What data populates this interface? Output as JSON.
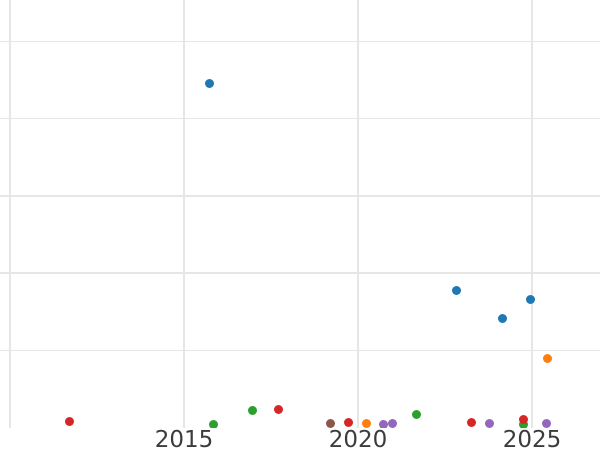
{
  "page": {
    "background": "#ffffff"
  },
  "chart_data": {
    "type": "scatter",
    "title": "",
    "xlabel": "",
    "ylabel": "",
    "legend": false,
    "grid": true,
    "x_tick_labels": [
      "2015",
      "2020",
      "2025"
    ],
    "x_ticks": [
      2015,
      2020,
      2025
    ],
    "x_gridline_years": [
      2010,
      2015,
      2020,
      2025
    ],
    "y_gridline_values": [
      1,
      2,
      3,
      4,
      5
    ],
    "xlim": [
      2009.7,
      2027.0
    ],
    "ylim": [
      0,
      5.54
    ],
    "y_axis_note": "no y tick labels visible in cropped view; y values expressed in gridline units (one gridline step = 1 unit, plot bottom edge = 0)",
    "marker_size_px": 9,
    "colors": {
      "grid": "#e6e6e6",
      "tick_label": "#3c3c3c",
      "background": "#ffffff"
    },
    "series": [
      {
        "name": "blue",
        "color": "#1f77b4",
        "points": [
          [
            2015.72,
            4.45
          ],
          [
            2022.82,
            1.78
          ],
          [
            2024.15,
            1.41
          ],
          [
            2024.97,
            1.66
          ]
        ]
      },
      {
        "name": "orange",
        "color": "#ff7f0e",
        "points": [
          [
            2020.23,
            0.05
          ],
          [
            2025.44,
            0.89
          ]
        ]
      },
      {
        "name": "green",
        "color": "#2ca02c",
        "points": [
          [
            2015.86,
            0.04
          ],
          [
            2016.96,
            0.22
          ],
          [
            2021.67,
            0.17
          ],
          [
            2024.77,
            0.04
          ]
        ]
      },
      {
        "name": "red",
        "color": "#d62728",
        "points": [
          [
            2011.7,
            0.08
          ],
          [
            2017.72,
            0.23
          ],
          [
            2019.73,
            0.06
          ],
          [
            2023.26,
            0.07
          ],
          [
            2024.77,
            0.1
          ]
        ]
      },
      {
        "name": "purple",
        "color": "#9467bd",
        "points": [
          [
            2020.73,
            0.04
          ],
          [
            2021.0,
            0.05
          ],
          [
            2023.77,
            0.05
          ],
          [
            2025.41,
            0.05
          ]
        ]
      },
      {
        "name": "brown",
        "color": "#8c564b",
        "points": [
          [
            2019.22,
            0.05
          ]
        ]
      }
    ]
  }
}
